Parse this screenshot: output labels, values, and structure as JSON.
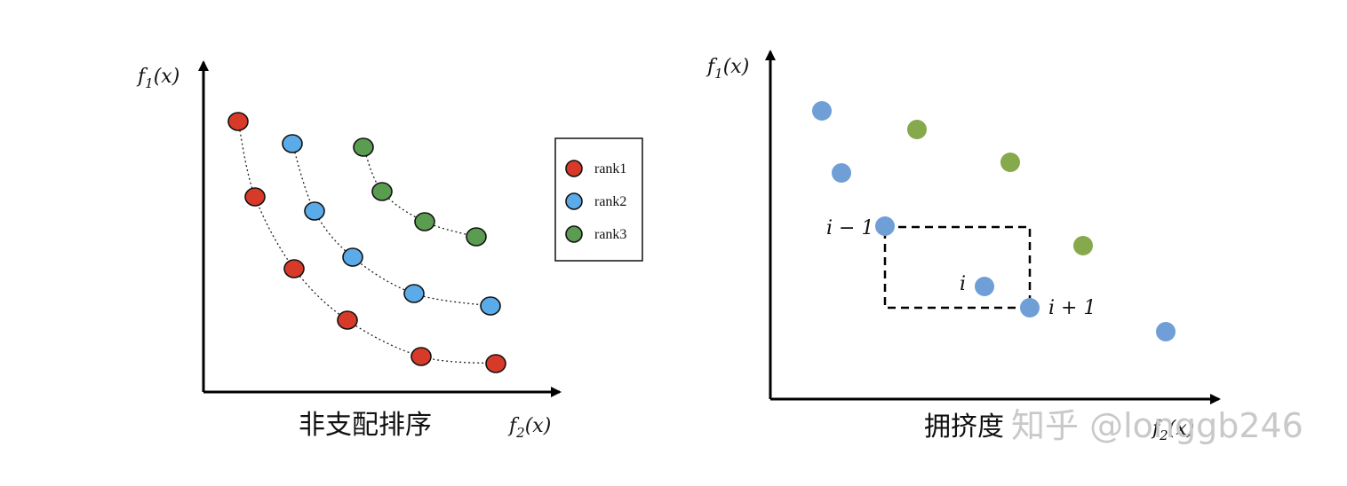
{
  "colors": {
    "rank1": "#d83a2a",
    "rank2": "#5aabe8",
    "rank3": "#5a9c50",
    "crowd_blue": "#6f9fd6",
    "crowd_green": "#86a94c"
  },
  "left_panel": {
    "y_axis": {
      "f": "f",
      "sub": "1",
      "arg": "(x)"
    },
    "x_axis": {
      "f": "f",
      "sub": "2",
      "arg": "(x)"
    },
    "caption": "非支配排序",
    "legend": [
      {
        "label": "rank1",
        "color_key": "rank1"
      },
      {
        "label": "rank2",
        "color_key": "rank2"
      },
      {
        "label": "rank3",
        "color_key": "rank3"
      }
    ],
    "fronts": [
      {
        "name": "rank1",
        "color_key": "rank1",
        "points": [
          [
            268,
            137
          ],
          [
            287,
            222
          ],
          [
            331,
            303
          ],
          [
            391,
            361
          ],
          [
            474,
            402
          ],
          [
            558,
            410
          ]
        ]
      },
      {
        "name": "rank2",
        "color_key": "rank2",
        "points": [
          [
            329,
            162
          ],
          [
            354,
            238
          ],
          [
            397,
            290
          ],
          [
            466,
            331
          ],
          [
            552,
            345
          ]
        ]
      },
      {
        "name": "rank3",
        "color_key": "rank3",
        "points": [
          [
            409,
            166
          ],
          [
            430,
            216
          ],
          [
            478,
            250
          ],
          [
            536,
            267
          ]
        ]
      }
    ]
  },
  "right_panel": {
    "y_axis": {
      "f": "f",
      "sub": "1",
      "arg": "(x)"
    },
    "x_axis": {
      "f": "f",
      "sub": "2",
      "arg": "(x)"
    },
    "caption": "拥挤度",
    "labels": {
      "i_minus_1": "i − 1",
      "i": "i",
      "i_plus_1": "i + 1"
    },
    "points": [
      {
        "p": [
          925,
          125
        ],
        "color_key": "crowd_blue"
      },
      {
        "p": [
          947,
          195
        ],
        "color_key": "crowd_blue"
      },
      {
        "p": [
          996,
          255
        ],
        "color_key": "crowd_blue"
      },
      {
        "p": [
          1108,
          323
        ],
        "color_key": "crowd_blue"
      },
      {
        "p": [
          1159,
          347
        ],
        "color_key": "crowd_blue"
      },
      {
        "p": [
          1312,
          374
        ],
        "color_key": "crowd_blue"
      },
      {
        "p": [
          1032,
          146
        ],
        "color_key": "crowd_green"
      },
      {
        "p": [
          1137,
          183
        ],
        "color_key": "crowd_green"
      },
      {
        "p": [
          1219,
          277
        ],
        "color_key": "crowd_green"
      }
    ]
  },
  "watermark": "知乎 @longgb246"
}
